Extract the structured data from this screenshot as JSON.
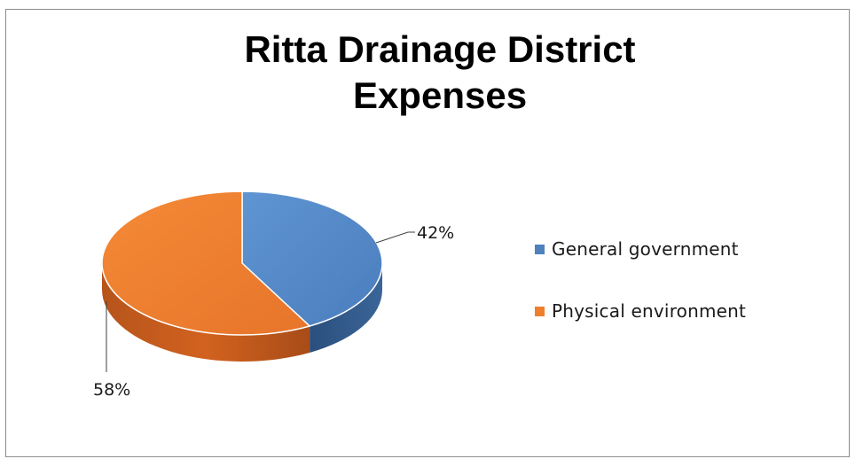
{
  "chart_data": {
    "type": "pie",
    "title": [
      "Ritta Drainage District",
      "Expenses"
    ],
    "categories": [
      "General government",
      "Physical environment"
    ],
    "values": [
      42,
      58
    ],
    "data_labels": [
      "42%",
      "58%"
    ],
    "colors": [
      "#4f81bd",
      "#f07f2d"
    ],
    "legend_placement": "right",
    "style": "3d"
  }
}
